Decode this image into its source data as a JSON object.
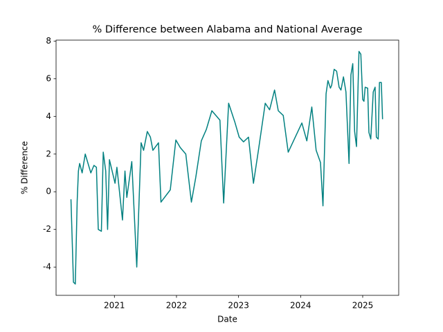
{
  "chart_data": {
    "type": "line",
    "title": "% Difference between Alabama and National Average",
    "x_label": "Date",
    "y_label": "% Difference",
    "x": [
      2020.3,
      2020.34,
      2020.37,
      2020.4,
      2020.42,
      2020.44,
      2020.48,
      2020.53,
      2020.62,
      2020.67,
      2020.71,
      2020.74,
      2020.79,
      2020.82,
      2020.86,
      2020.89,
      2020.92,
      2021.01,
      2021.04,
      2021.13,
      2021.17,
      2021.2,
      2021.28,
      2021.36,
      2021.43,
      2021.47,
      2021.53,
      2021.58,
      2021.62,
      2021.71,
      2021.75,
      2021.9,
      2021.99,
      2022.06,
      2022.15,
      2022.24,
      2022.31,
      2022.4,
      2022.48,
      2022.57,
      2022.7,
      2022.76,
      2022.84,
      2022.94,
      2023.01,
      2023.08,
      2023.16,
      2023.24,
      2023.32,
      2023.43,
      2023.5,
      2023.58,
      2023.64,
      2023.72,
      2023.8,
      2024.02,
      2024.1,
      2024.18,
      2024.25,
      2024.32,
      2024.36,
      2024.41,
      2024.44,
      2024.48,
      2024.5,
      2024.54,
      2024.58,
      2024.62,
      2024.65,
      2024.69,
      2024.73,
      2024.78,
      2024.81,
      2024.84,
      2024.87,
      2024.9,
      2024.94,
      2024.97,
      2025.0,
      2025.02,
      2025.04,
      2025.08,
      2025.1,
      2025.13,
      2025.17,
      2025.2,
      2025.22,
      2025.25,
      2025.27,
      2025.3,
      2025.32
    ],
    "series": [
      {
        "name": "% Difference",
        "color": "#008080",
        "values": [
          -0.4,
          -4.8,
          -4.9,
          -0.5,
          1.1,
          1.5,
          1.0,
          2.0,
          1.0,
          1.4,
          1.3,
          -2.0,
          -2.1,
          2.1,
          1.1,
          -2.0,
          1.7,
          0.45,
          1.3,
          -1.5,
          1.1,
          -0.3,
          1.6,
          -4.0,
          2.6,
          2.2,
          3.2,
          2.9,
          2.2,
          2.6,
          -0.55,
          0.1,
          2.75,
          2.35,
          2.0,
          -0.55,
          0.75,
          2.7,
          3.3,
          4.3,
          3.8,
          -0.6,
          4.7,
          3.7,
          2.9,
          2.65,
          2.9,
          0.45,
          2.2,
          4.7,
          4.35,
          5.4,
          4.3,
          4.05,
          2.1,
          3.65,
          2.7,
          4.5,
          2.2,
          1.55,
          -0.75,
          5.2,
          5.9,
          5.5,
          5.65,
          6.5,
          6.4,
          5.55,
          5.4,
          6.1,
          5.3,
          1.5,
          6.2,
          6.8,
          3.2,
          2.4,
          7.45,
          7.3,
          4.9,
          4.8,
          5.55,
          5.5,
          3.15,
          2.8,
          5.3,
          5.55,
          2.9,
          2.8,
          5.8,
          5.8,
          3.85
        ]
      }
    ],
    "xlim": [
      2020.06,
      2025.58
    ],
    "xticks": [
      2021,
      2022,
      2023,
      2024,
      2025
    ],
    "ylim": [
      -5.5,
      8.05
    ],
    "yticks": [
      -4,
      -2,
      0,
      2,
      4,
      6,
      8
    ],
    "grid": false
  }
}
